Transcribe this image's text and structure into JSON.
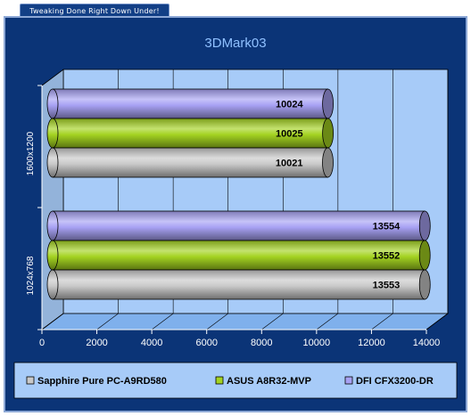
{
  "banner": {
    "text": "Tweaking Done Right Down Under!"
  },
  "chart_data": {
    "type": "bar",
    "orientation": "horizontal",
    "style": "3d-cylinder",
    "title": "3DMark03",
    "xlabel": "",
    "ylabel": "",
    "categories": [
      "1600x1200",
      "1024x768"
    ],
    "series": [
      {
        "name": "DFI CFX3200-DR",
        "color": "#a8a2f4",
        "values": [
          10024,
          13554
        ]
      },
      {
        "name": "ASUS A8R32-MVP",
        "color": "#a4d321",
        "values": [
          10025,
          13552
        ]
      },
      {
        "name": "Sapphire Pure PC-A9RD580",
        "color": "#c9c9c9",
        "values": [
          10021,
          13553
        ]
      }
    ],
    "legend_order": [
      "Sapphire Pure PC-A9RD580",
      "ASUS A8R32-MVP",
      "DFI CFX3200-DR"
    ],
    "xlim": [
      0,
      14000
    ],
    "xticks": [
      0,
      2000,
      4000,
      6000,
      8000,
      10000,
      12000,
      14000
    ],
    "grid": true,
    "legend_position": "bottom",
    "colors": {
      "panel_bg": "#0b3477",
      "plot_bg": "#a7cbf8",
      "floor": "#7fb0ec",
      "title": "#8fc0ff"
    }
  }
}
